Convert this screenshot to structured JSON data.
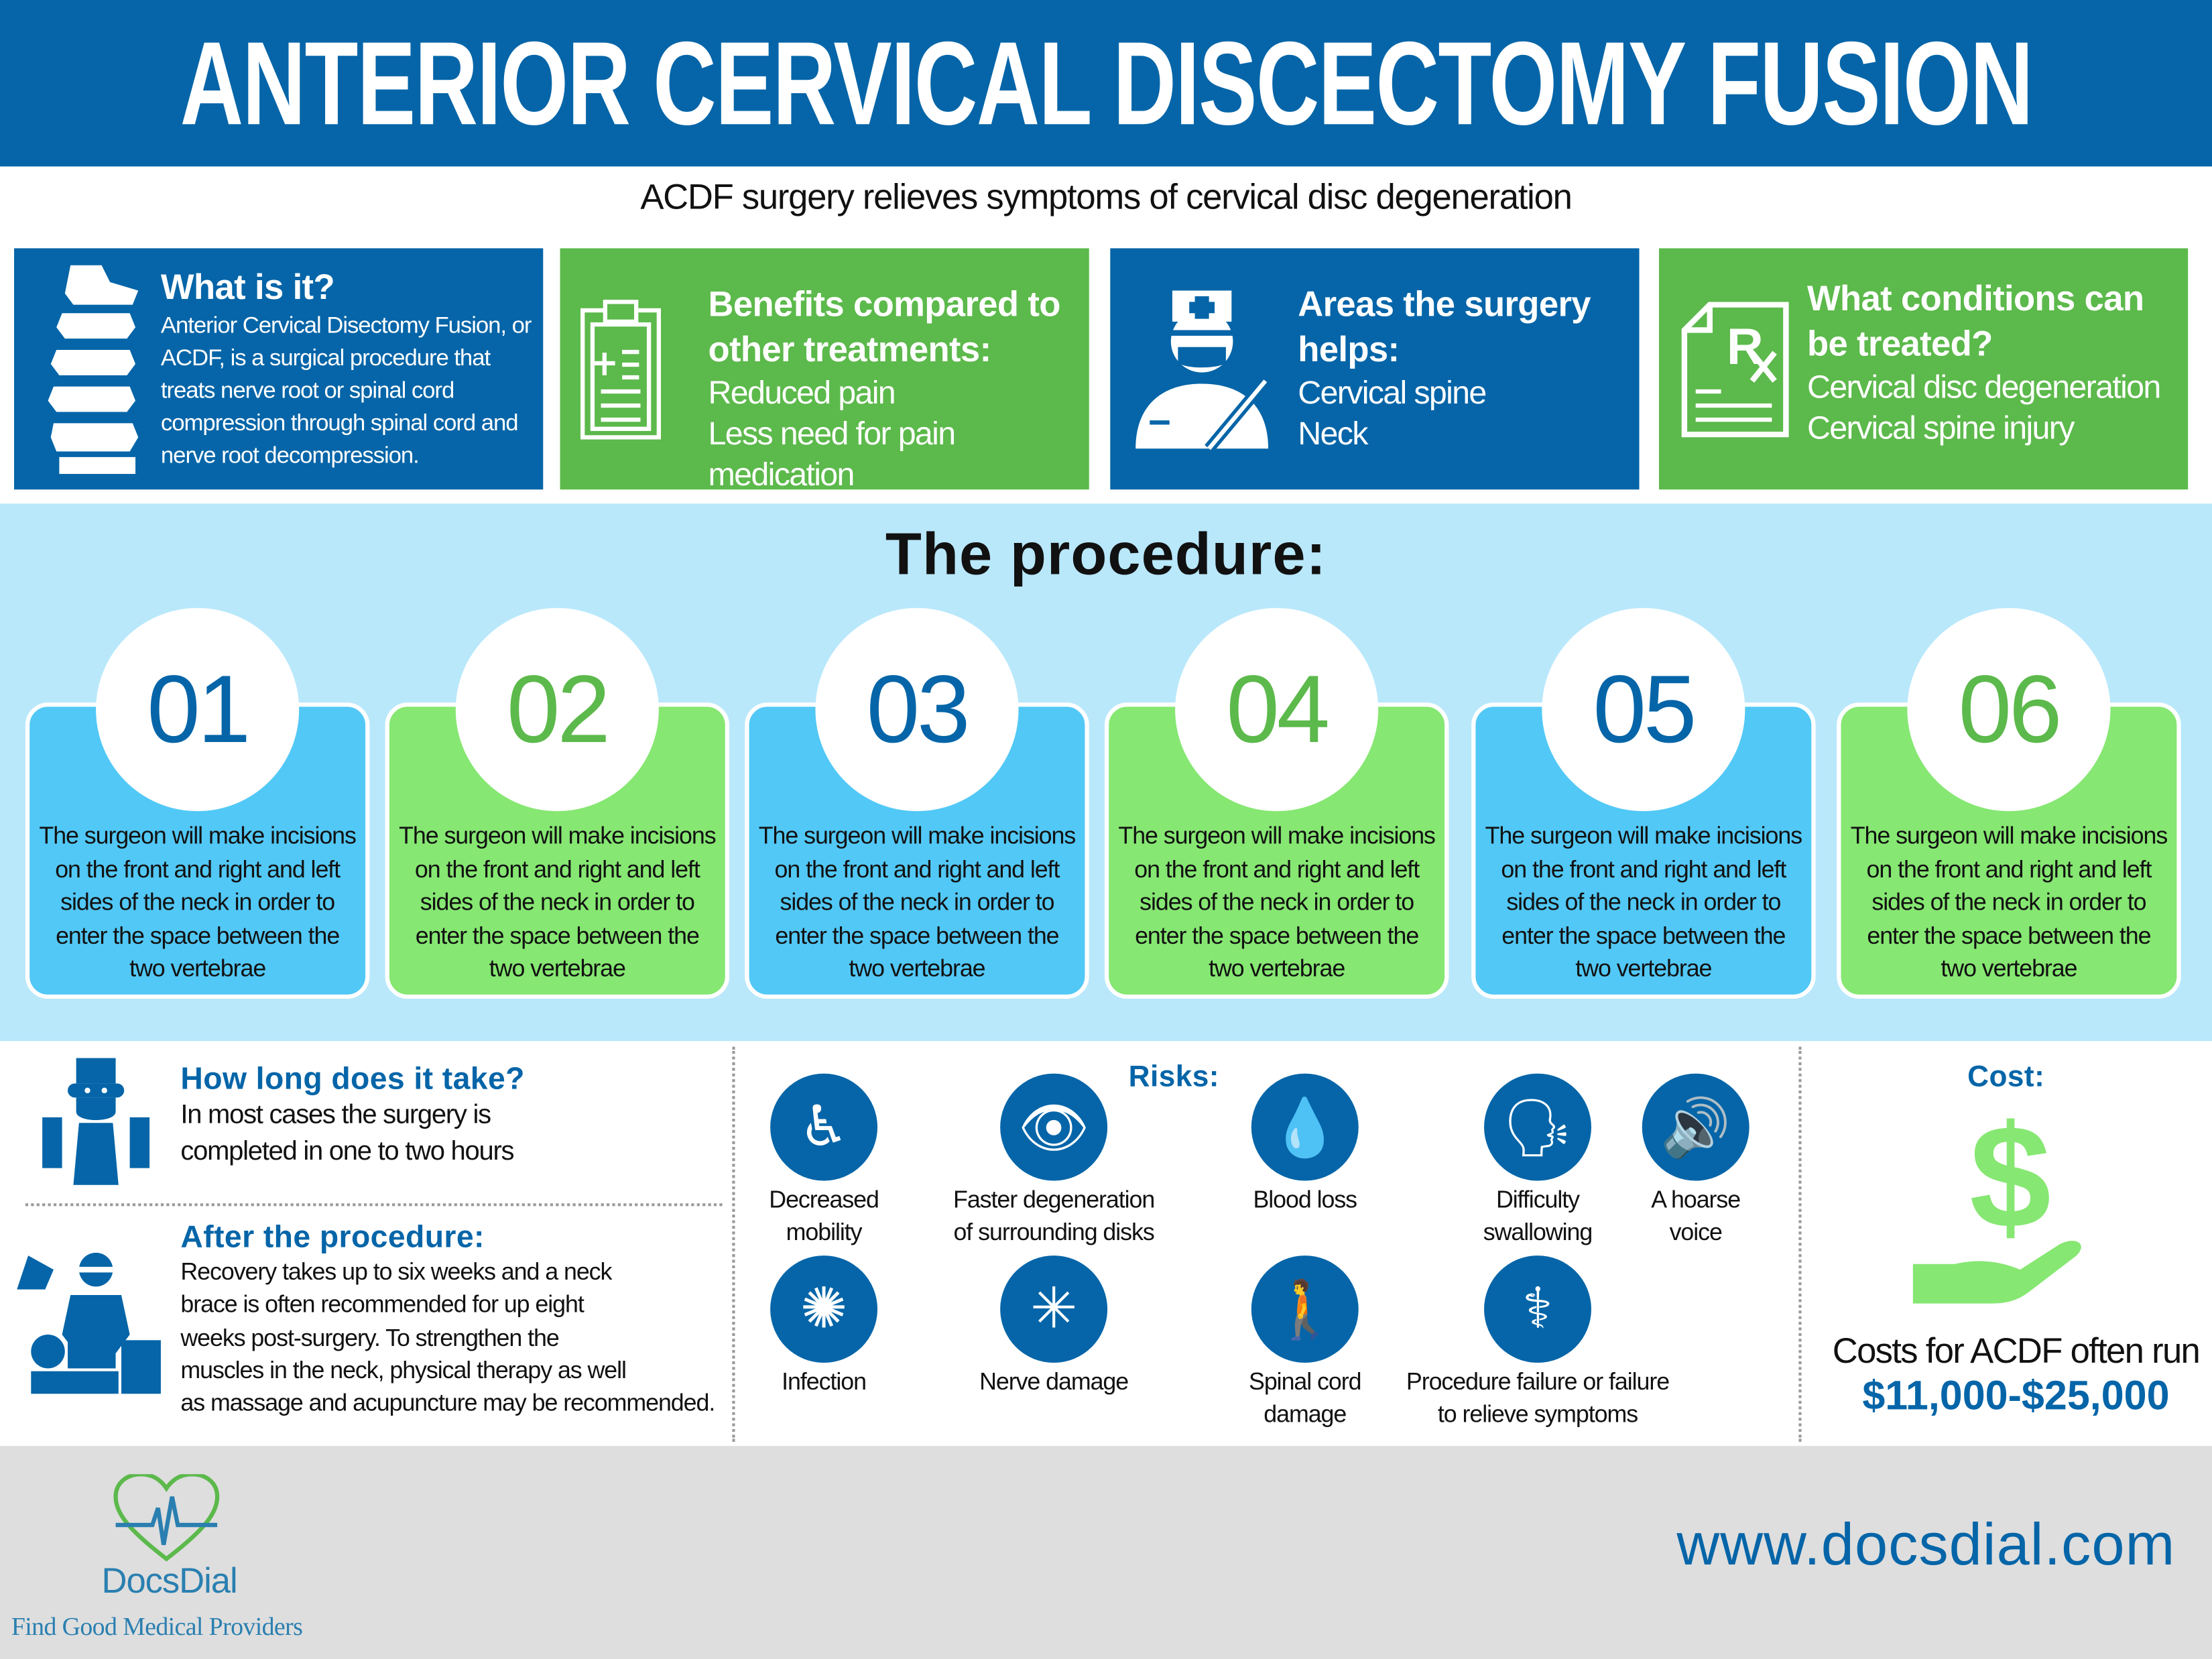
{
  "header": {
    "title": "ANTERIOR CERVICAL DISCECTOMY FUSION",
    "subtitle": "ACDF surgery relieves symptoms of cervical disc degeneration"
  },
  "colors": {
    "blue": "#0565a8",
    "green": "#5cb94b",
    "light_blue": "#b9e8fb",
    "step_blue": "#52c8f6",
    "step_green": "#86e772",
    "footer": "#dedede"
  },
  "cards": [
    {
      "icon": "spine-icon",
      "title": "What is it?",
      "body": "Anterior Cervical Disectomy Fusion, or ACDF, is a surgical procedure that treats nerve root or spinal cord compression through spinal cord and nerve root decompression."
    },
    {
      "icon": "clipboard-icon",
      "title": "Benefits compared to other treatments:",
      "items": [
        "Reduced pain",
        "Less need for pain medication"
      ]
    },
    {
      "icon": "surgeon-icon",
      "title": "Areas the surgery helps:",
      "items": [
        "Cervical spine",
        "Neck"
      ]
    },
    {
      "icon": "prescription-icon",
      "title": "What conditions can be treated?",
      "items": [
        "Cervical disc degeneration",
        "Cervical spine injury"
      ]
    }
  ],
  "procedure": {
    "title": "The procedure:",
    "steps": [
      {
        "number": "01",
        "text": "The surgeon will make incisions on the front and right and left sides of the neck in order to enter the space between the two vertebrae"
      },
      {
        "number": "02",
        "text": "The surgeon will make incisions on the front and right and left sides of the neck in order to enter the space between the two vertebrae"
      },
      {
        "number": "03",
        "text": "The surgeon will make incisions on the front and right and left sides of the neck in order to enter the space between the two vertebrae"
      },
      {
        "number": "04",
        "text": "The surgeon will make incisions on the front and right and left sides of the neck in order to enter the space between the two vertebrae"
      },
      {
        "number": "05",
        "text": "The surgeon will make incisions on the front and right and left sides of the neck in order to enter the space between the two vertebrae"
      },
      {
        "number": "06",
        "text": "The surgeon will make incisions on the front and right and left sides of the neck in order to enter the space between the two vertebrae"
      }
    ]
  },
  "duration": {
    "title": "How long does it take?",
    "lines": [
      "In most cases the surgery is",
      "completed in one to two hours"
    ]
  },
  "after": {
    "title": "After the procedure:",
    "lines": [
      "Recovery takes up to six weeks and a neck",
      "brace is often recommended for up eight",
      "weeks post-surgery. To strengthen the",
      "muscles in the neck, physical therapy as well",
      "as massage and acupuncture may be recommended."
    ]
  },
  "risks": {
    "title": "Risks:",
    "items": [
      {
        "icon": "wheelchair-icon",
        "lines": [
          "Decreased",
          "mobility"
        ]
      },
      {
        "icon": "eye-icon",
        "lines": [
          "Faster degeneration",
          "of surrounding disks"
        ]
      },
      {
        "icon": "blood-loss-icon",
        "lines": [
          "Blood loss"
        ]
      },
      {
        "icon": "swallowing-icon",
        "lines": [
          "Difficulty",
          "swallowing"
        ]
      },
      {
        "icon": "hoarse-voice-icon",
        "lines": [
          "A hoarse",
          "voice"
        ]
      },
      {
        "icon": "virus-icon",
        "lines": [
          "Infection"
        ]
      },
      {
        "icon": "nerve-icon",
        "lines": [
          "Nerve damage"
        ]
      },
      {
        "icon": "back-pain-icon",
        "lines": [
          "Spinal cord",
          "damage"
        ]
      },
      {
        "icon": "joint-pain-icon",
        "lines": [
          "Procedure failure or failure",
          "to relieve symptoms"
        ]
      }
    ]
  },
  "cost": {
    "title": "Cost:",
    "line": "Costs for ACDF often run",
    "amount": "$11,000-$25,000"
  },
  "footer": {
    "brand": "DocsDial",
    "tagline": "Find Good Medical Providers",
    "url": "www.docsdial.com"
  }
}
